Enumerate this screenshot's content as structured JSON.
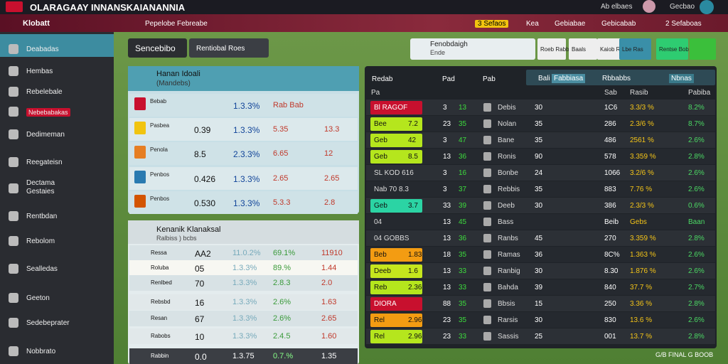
{
  "header": {
    "title": "OLARAGAAY INNANSKAIANANNIA",
    "user": "Ab elbaes",
    "account": "Gecbao"
  },
  "nav": {
    "brand": "Klobatt",
    "tab": "Pepelobe Febreabe",
    "items": [
      "3 Sefaos",
      "Kea",
      "Gebiabae",
      "Gebicabab",
      "2 Sefaboas"
    ]
  },
  "sidebar": [
    "Deabadas",
    "Hembas",
    "Rebelebale",
    "Nebebabakas",
    "Dedimeman",
    "Reegateisn",
    "Dectama Gestaies",
    "Rentbdan",
    "Rebolom",
    "Sealledas",
    "Geeton",
    "Sedebeprater",
    "Nobbrato"
  ],
  "toolbar": {
    "title": "Sencebibo",
    "select": "Rentiobal Roes"
  },
  "filters": {
    "label": "Fenobdaigh",
    "sub": "Ende",
    "buttons": [
      "Roeb Rabb",
      "Baals",
      "Kaiob Rer",
      "Lbe Ras",
      "Rentse Bob"
    ]
  },
  "group1": {
    "title": "Hanan Idoali",
    "subtitle": "(Mandebs)",
    "rows": [
      [
        "Bebab",
        "",
        "1.3.3%",
        "Rab Bab",
        ""
      ],
      [
        "Pasbea",
        "0.39",
        "1.3.3%",
        "5.35",
        "13.3"
      ],
      [
        "Penola",
        "8.5",
        "2.3.3%",
        "6.65",
        "12"
      ],
      [
        "Penbos",
        "0.426",
        "1.3.3%",
        "2.65",
        "2.65"
      ],
      [
        "Penbos",
        "0.530",
        "1.3.3%",
        "5.3.3",
        "2.8"
      ]
    ]
  },
  "group2": {
    "title": "Kenanik Klanaksal",
    "subtitle": "Ralbiss ) bcbs",
    "rows": [
      [
        "Ressa",
        "AA2",
        "11.0.2%",
        "69.1%",
        "11910"
      ],
      [
        "Roluba",
        "05",
        "1.3.3%",
        "89.%",
        "1.44"
      ],
      [
        "Renlbed",
        "70",
        "1.3.3%",
        "2.8.3",
        "2.0"
      ],
      [
        "Rebsbd",
        "16",
        "1.3.3%",
        "2.6%",
        "1.63"
      ],
      [
        "Resan",
        "67",
        "1.3.3%",
        "2.6%",
        "2.65"
      ],
      [
        "Rabobs",
        "10",
        "1.3.3%",
        "2.4.5",
        "1.60"
      ],
      [
        "Rabbin",
        "0.0",
        "1.3.75",
        "0.7.%",
        "1.35"
      ]
    ]
  },
  "table": {
    "title": "Redab",
    "cols": [
      "Pad",
      "Pab"
    ],
    "tabs": [
      "Bali",
      "Fabbiasa",
      "Rbbabbs",
      "Nbnas"
    ],
    "subheads": [
      "Pa",
      "Sab",
      "Rasib",
      "Pabiba"
    ],
    "rows": [
      {
        "box": "Bl RAGOF",
        "bv": "",
        "color": "#c8102e",
        "cells": [
          "3",
          "13",
          "Debis",
          "30",
          "1C6",
          "3.3/3 %",
          "8.2%"
        ]
      },
      {
        "box": "Bee",
        "bv": "7.2",
        "color": "#b5e61d",
        "cells": [
          "23",
          "35",
          "Nolan",
          "35",
          "286",
          "2.3/6 %",
          "8.7%"
        ]
      },
      {
        "box": "Geb",
        "bv": "42",
        "color": "#b5e61d",
        "cells": [
          "3",
          "47",
          "Bane",
          "35",
          "486",
          "2561 %",
          "2.6%"
        ]
      },
      {
        "box": "Geb",
        "bv": "8.5",
        "color": "#b5e61d",
        "cells": [
          "13",
          "36",
          "Ronis",
          "90",
          "578",
          "3.359 %",
          "2.8%"
        ]
      },
      {
        "box": "SL KOD 616",
        "bv": "",
        "color": "",
        "cells": [
          "3",
          "16",
          "Bonbe",
          "24",
          "1066",
          "3.2/6 %",
          "2.6%"
        ]
      },
      {
        "box": "Nab 70 8.3",
        "bv": "",
        "color": "",
        "cells": [
          "3",
          "37",
          "Rebbis",
          "35",
          "883",
          "7.76 %",
          "2.6%"
        ]
      },
      {
        "box": "Geb",
        "bv": "3.7",
        "color": "#2bd4a4",
        "cells": [
          "33",
          "39",
          "Deeb",
          "30",
          "386",
          "2.3/3 %",
          "0.6%"
        ]
      },
      {
        "box": "04",
        "bv": "",
        "color": "",
        "cells": [
          "13",
          "45",
          "Bass",
          "",
          "Beib",
          "Gebs",
          "Baan"
        ]
      },
      {
        "box": "04 GOBBS",
        "bv": "",
        "color": "",
        "cells": [
          "13",
          "36",
          "Ranbs",
          "45",
          "270",
          "3.359 %",
          "2.8%"
        ]
      },
      {
        "box": "Beb",
        "bv": "1.83",
        "color": "#f39c12",
        "cells": [
          "18",
          "35",
          "Ramas",
          "36",
          "8C%",
          "1.363 %",
          "2.6%"
        ]
      },
      {
        "box": "Deeb",
        "bv": "1.6",
        "color": "#c6e61d",
        "cells": [
          "13",
          "33",
          "Ranbig",
          "30",
          "8.30",
          "1.876 %",
          "2.6%"
        ]
      },
      {
        "box": "Reb",
        "bv": "2.36",
        "color": "#b5e61d",
        "cells": [
          "13",
          "33",
          "Bahda",
          "39",
          "840",
          "37.7 %",
          "2.7%"
        ]
      },
      {
        "box": "DIORA",
        "bv": "",
        "color": "#c8102e",
        "cells": [
          "88",
          "35",
          "Bbsis",
          "15",
          "250",
          "3.36 %",
          "2.8%"
        ]
      },
      {
        "box": "Rel",
        "bv": "2.96",
        "color": "#f39c12",
        "cells": [
          "23",
          "35",
          "Rarsis",
          "30",
          "830",
          "13.6 %",
          "2.6%"
        ]
      },
      {
        "box": "Rel",
        "bv": "2.96",
        "color": "#b5e61d",
        "cells": [
          "23",
          "33",
          "Sassis",
          "25",
          "001",
          "13.7 %",
          "2.8%"
        ]
      }
    ]
  },
  "footer": "G/B FINAL G BOOB"
}
